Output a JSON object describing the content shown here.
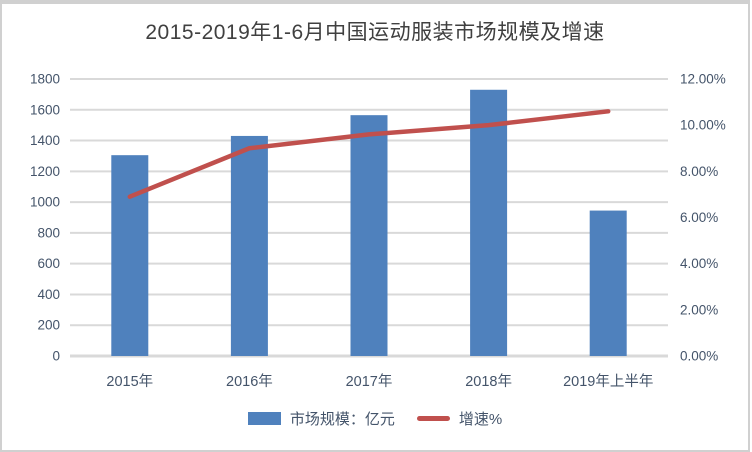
{
  "page": {
    "border_color": "#d0d0d0",
    "background": "#ffffff"
  },
  "chart_data": {
    "type": "bar+line-combo",
    "title": "2015-2019年1-6月中国运动服装市场规模及增速",
    "categories": [
      "2015年",
      "2016年",
      "2017年",
      "2018年",
      "2019年上半年"
    ],
    "series": [
      {
        "name": "市场规模：亿元",
        "type": "bar",
        "axis": "left",
        "color": "#4f81bd",
        "values": [
          1305,
          1430,
          1565,
          1730,
          945
        ]
      },
      {
        "name": "增速%",
        "type": "line",
        "axis": "right",
        "color": "#c0504d",
        "values": [
          6.9,
          9.0,
          9.6,
          10.0,
          10.6
        ]
      }
    ],
    "left_axis": {
      "min": 0,
      "max": 1800,
      "step": 200,
      "ticks": [
        "0",
        "200",
        "400",
        "600",
        "800",
        "1000",
        "1200",
        "1400",
        "1600",
        "1800"
      ]
    },
    "right_axis": {
      "min": 0,
      "max": 12,
      "step": 2,
      "ticks": [
        "0.00%",
        "2.00%",
        "4.00%",
        "6.00%",
        "8.00%",
        "10.00%",
        "12.00%"
      ]
    },
    "grid": true,
    "grid_color": "#d9d9d9",
    "legend_position": "bottom",
    "text_color": "#44546a",
    "title_color": "#404040"
  }
}
